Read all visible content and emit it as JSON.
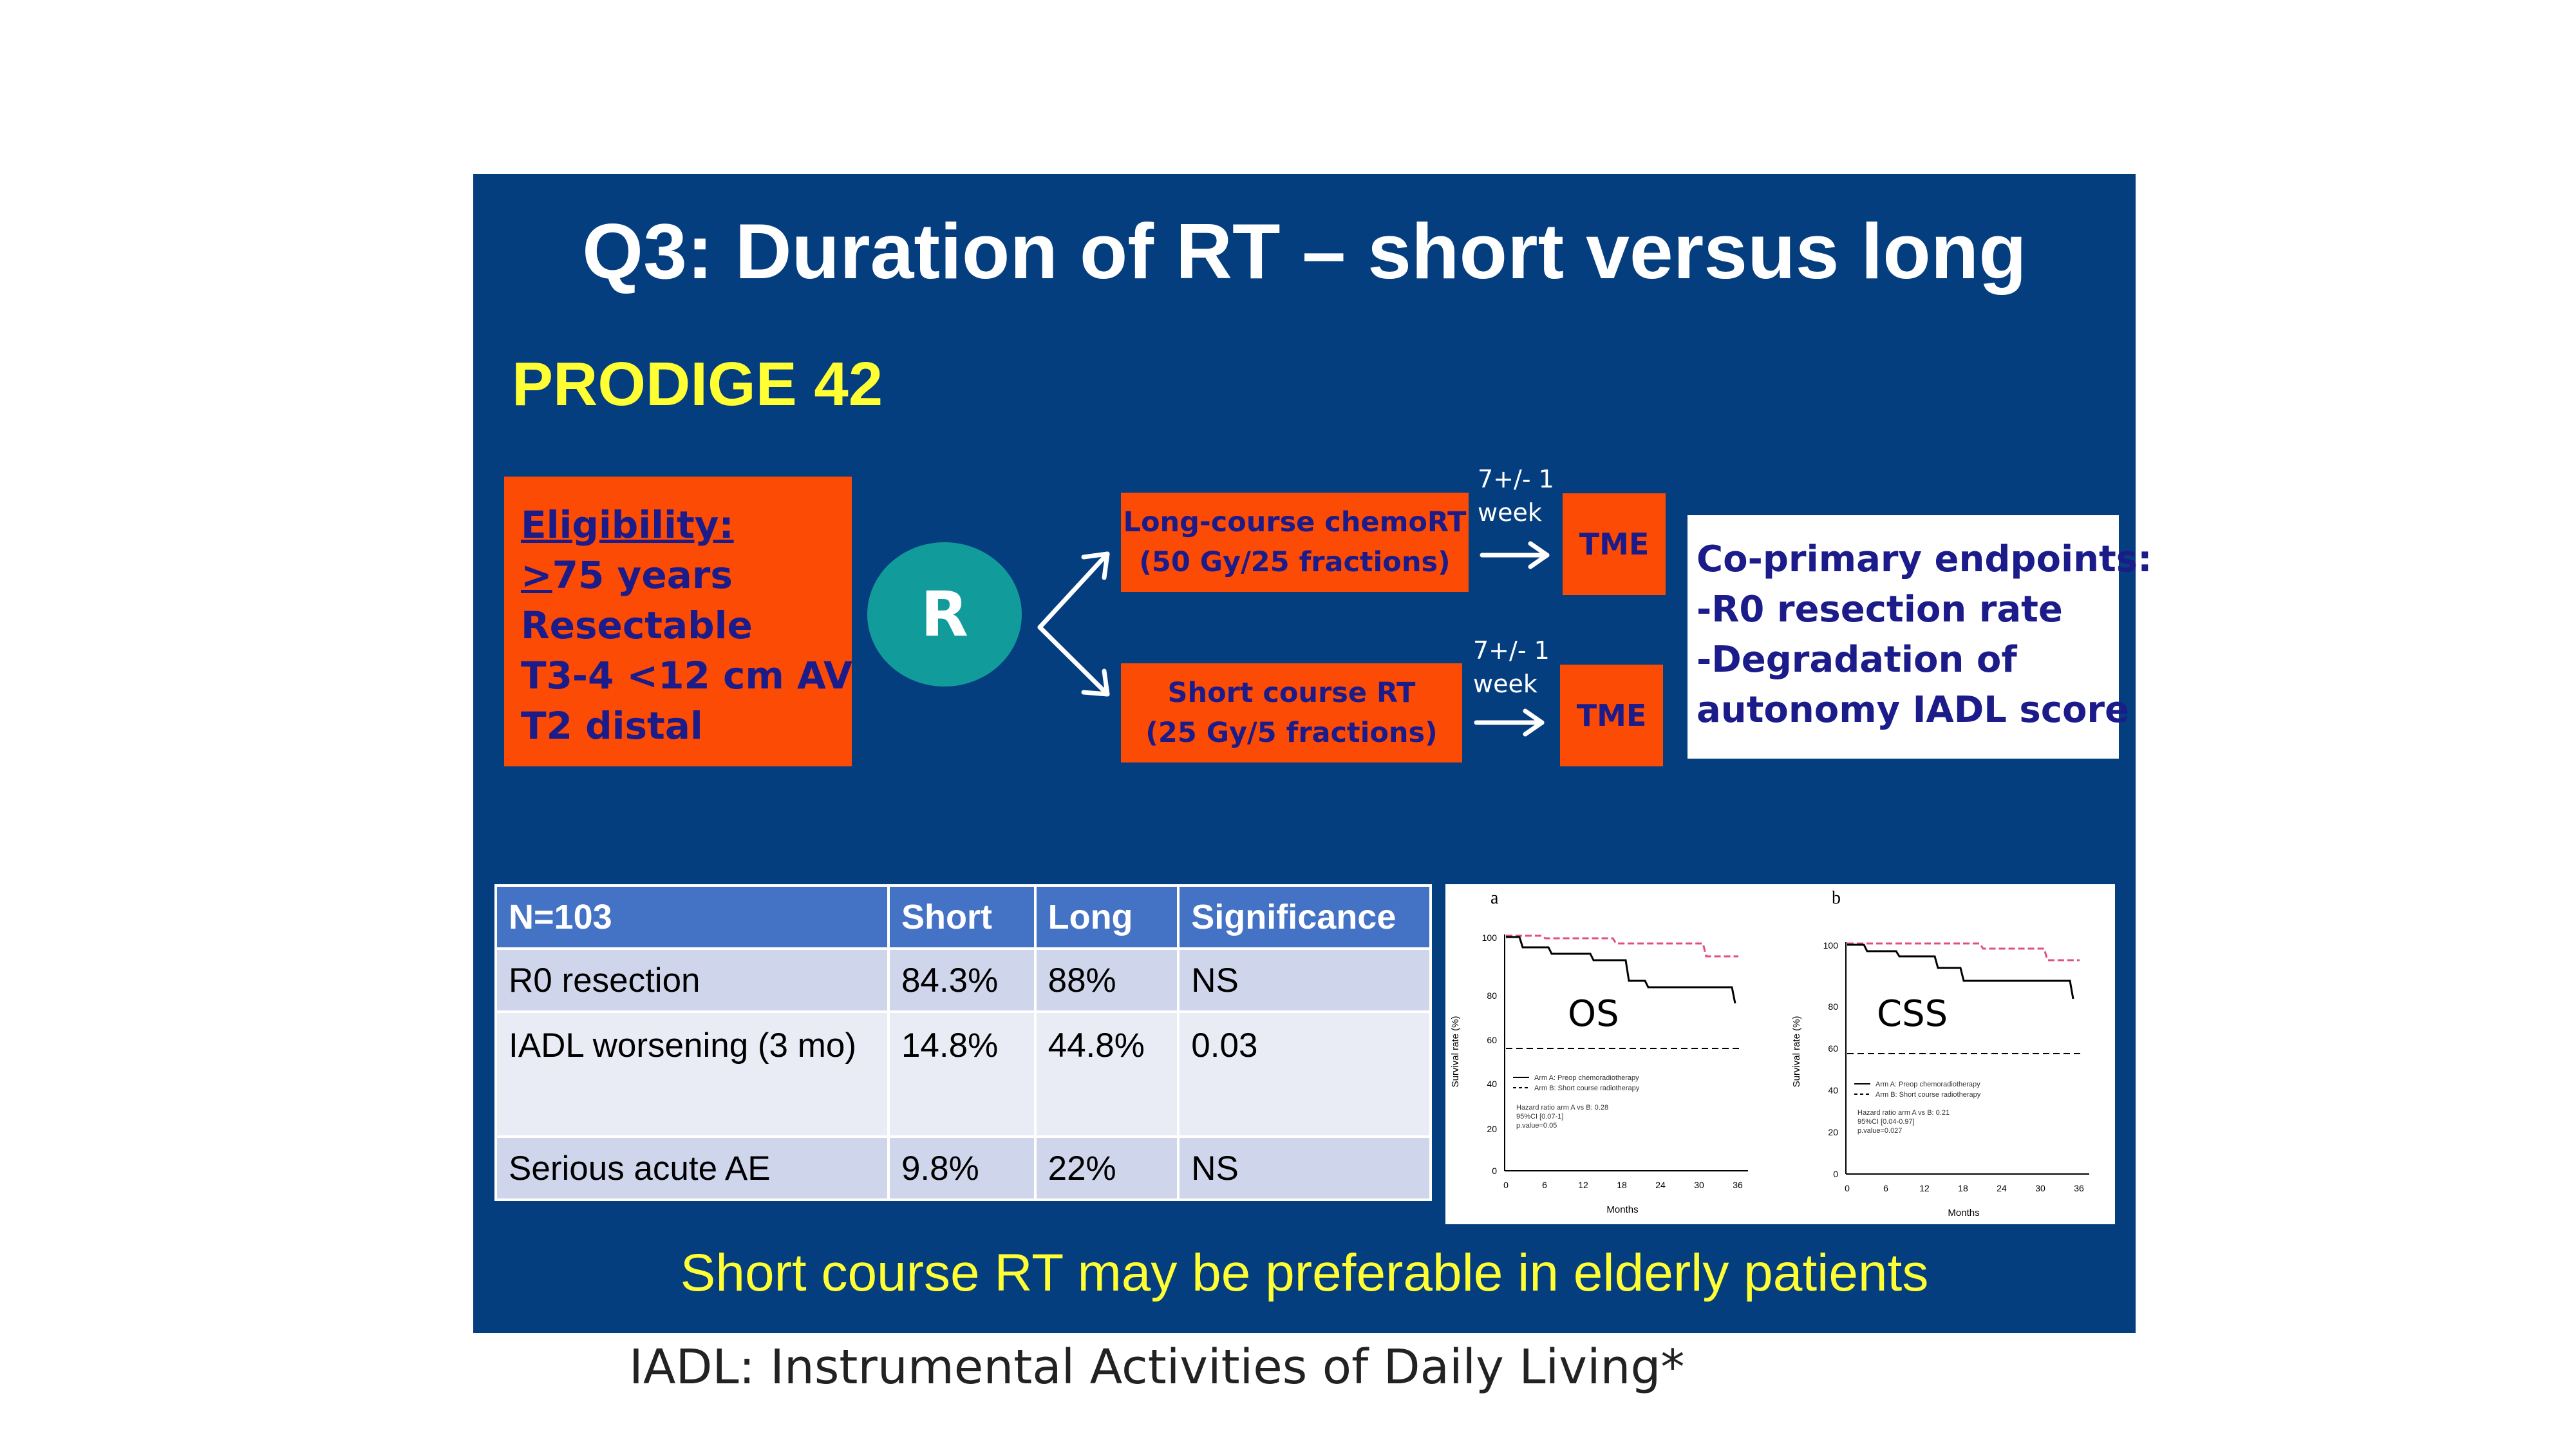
{
  "slide": {
    "title": "Q3: Duration of RT – short versus long",
    "subtitle": "PRODIGE 42",
    "eligibility": {
      "heading": "Eligibility:",
      "line1_ge": ">",
      "line1_rest": "75 years",
      "lines": [
        "Resectable",
        "T3-4 <12 cm AV",
        "T2 distal"
      ]
    },
    "randomize_label": "R",
    "arm_long": {
      "line1": "Long-course chemoRT",
      "line2": "(50 Gy/25 fractions)",
      "interval1": "7+/- 1",
      "interval2": "week",
      "surgery": "TME"
    },
    "arm_short": {
      "line1": "Short course RT",
      "line2": "(25 Gy/5 fractions)",
      "interval1": "7+/- 1",
      "interval2": "week",
      "surgery": "TME"
    },
    "endpoints": {
      "heading": "Co-primary endpoints:",
      "lines": [
        "-R0 resection rate",
        "-Degradation of",
        "autonomy IADL score"
      ]
    },
    "table": {
      "headers": [
        "N=103",
        "Short",
        "Long",
        "Significance"
      ],
      "rows": [
        [
          "R0 resection",
          "84.3%",
          "88%",
          "NS"
        ],
        [
          "IADL worsening (3 mo)",
          "14.8%",
          "44.8%",
          "0.03"
        ],
        [
          "Serious acute AE",
          "9.8%",
          "22%",
          "NS"
        ]
      ]
    },
    "km": {
      "panel_a_letter": "a",
      "panel_b_letter": "b",
      "panel_a_label": "OS",
      "panel_b_label": "CSS",
      "ylabel": "Survival rate (%)",
      "xlabel": "Months",
      "yticks": [
        "0",
        "20",
        "40",
        "60",
        "80",
        "100"
      ],
      "xticks": [
        "0",
        "6",
        "12",
        "18",
        "24",
        "30",
        "36"
      ],
      "legend_a": "Arm A: Preop chemoradiotherapy",
      "legend_b": "Arm B: Short course radiotherapy",
      "hr_a": [
        "Hazard ratio arm A vs B: 0.28",
        "95%CI [0.07-1]",
        "p.value=0.05"
      ],
      "hr_b": [
        "Hazard ratio arm A vs B: 0.21",
        "95%CI [0.04-0.97]",
        "p.value=0.027"
      ],
      "colors": {
        "arm_a": "#000000",
        "arm_b": "#e0507a"
      }
    },
    "conclusion": "Short course RT may be preferable in elderly patients"
  },
  "footnote": "IADL: Instrumental Activities of Daily Living*"
}
